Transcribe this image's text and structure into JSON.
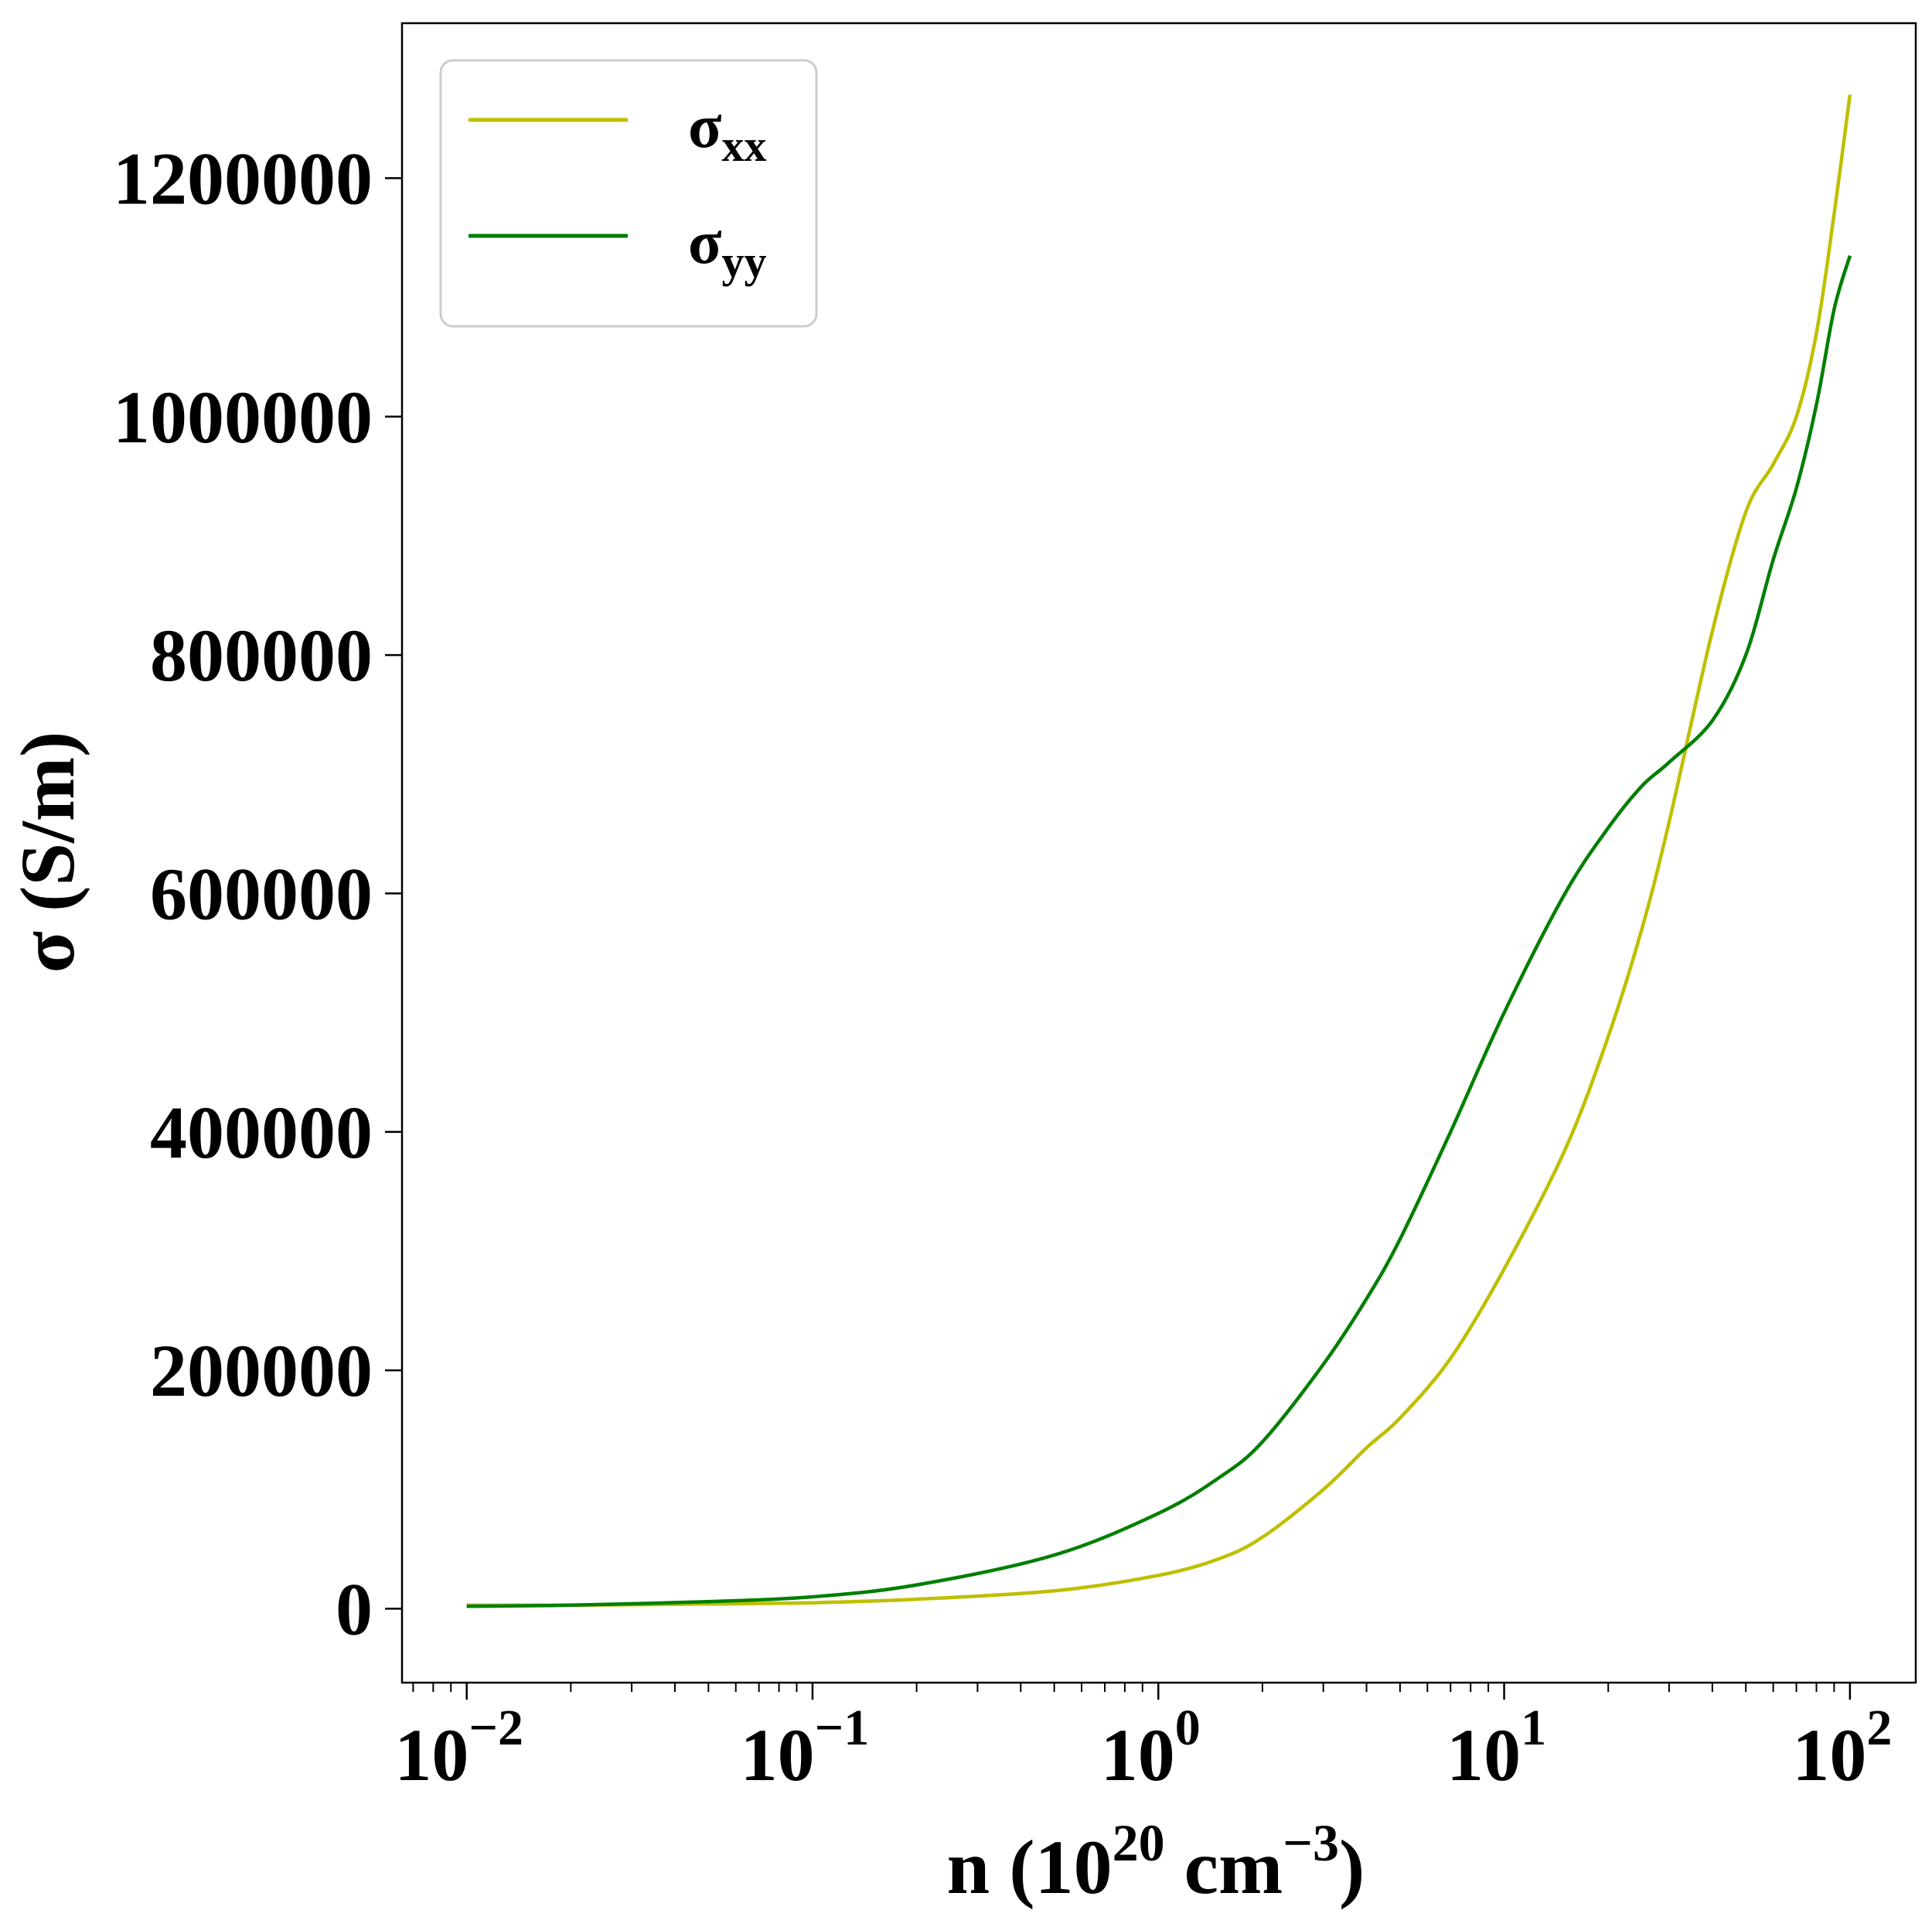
{
  "chart_data": {
    "type": "line",
    "title": "",
    "xlabel": {
      "main": "n (10",
      "exp": "20",
      "mid": " cm",
      "exp2": "−3",
      "end": ")"
    },
    "ylabel": "σ (S/m)",
    "xscale": "log",
    "xlim": [
      0.0065,
      155
    ],
    "ylim": [
      -62000,
      1330000
    ],
    "xticks": [
      {
        "value": 0.01,
        "base": "10",
        "exp": "−2"
      },
      {
        "value": 0.1,
        "base": "10",
        "exp": "−1"
      },
      {
        "value": 1,
        "base": "10",
        "exp": "0"
      },
      {
        "value": 10,
        "base": "10",
        "exp": "1"
      },
      {
        "value": 100,
        "base": "10",
        "exp": "2"
      }
    ],
    "yticks": [
      {
        "value": 0,
        "label": "0"
      },
      {
        "value": 200000,
        "label": "200000"
      },
      {
        "value": 400000,
        "label": "400000"
      },
      {
        "value": 600000,
        "label": "600000"
      },
      {
        "value": 800000,
        "label": "800000"
      },
      {
        "value": 1000000,
        "label": "1000000"
      },
      {
        "value": 1200000,
        "label": "1200000"
      }
    ],
    "grid": false,
    "legend": {
      "placement": "top-left",
      "entries": [
        {
          "symbol": "σ",
          "sub": "xx",
          "color": "#bfbf00"
        },
        {
          "symbol": "σ",
          "sub": "yy",
          "color": "#007f00"
        }
      ]
    },
    "series": [
      {
        "color": "#bfbf00",
        "x": [
          0.01,
          0.02,
          0.05,
          0.1,
          0.2,
          0.5,
          1,
          1.5,
          2,
          3,
          4,
          5,
          7,
          10,
          15,
          20,
          25,
          30,
          40,
          50,
          60,
          70,
          80,
          90,
          100
        ],
        "y": [
          3000,
          3000,
          4000,
          5000,
          8000,
          15000,
          28000,
          42000,
          60000,
          100000,
          135000,
          160000,
          210000,
          285000,
          385000,
          480000,
          570000,
          660000,
          820000,
          920000,
          960000,
          1000000,
          1070000,
          1170000,
          1270000
        ]
      },
      {
        "color": "#007f00",
        "x": [
          0.01,
          0.02,
          0.05,
          0.1,
          0.2,
          0.5,
          1,
          1.5,
          2,
          3,
          4,
          5,
          7,
          10,
          15,
          20,
          25,
          30,
          40,
          50,
          60,
          70,
          80,
          90,
          100
        ],
        "y": [
          2000,
          3000,
          6000,
          10000,
          20000,
          45000,
          80000,
          110000,
          140000,
          205000,
          260000,
          310000,
          400000,
          500000,
          600000,
          655000,
          690000,
          710000,
          745000,
          800000,
          880000,
          940000,
          1010000,
          1090000,
          1135000
        ]
      }
    ]
  }
}
